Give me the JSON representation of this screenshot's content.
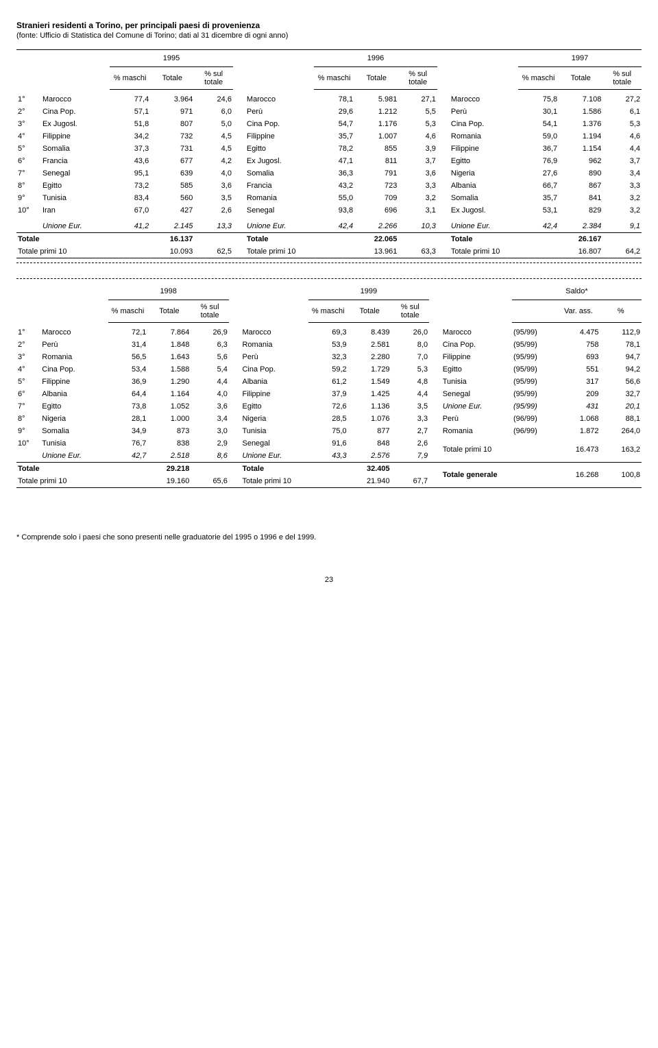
{
  "title": "Stranieri residenti a Torino, per principali paesi di provenienza",
  "subtitle": "(fonte: Ufficio di Statistica del Comune di Torino; dati al 31 dicembre di ogni anno)",
  "cols": {
    "pct_maschi": "% maschi",
    "totale": "Totale",
    "pct_sul_totale": "% sul totale",
    "var_ass": "Var. ass.",
    "pct": "%"
  },
  "years": {
    "y1995": "1995",
    "y1996": "1996",
    "y1997": "1997",
    "y1998": "1998",
    "y1999": "1999",
    "saldo": "Saldo*"
  },
  "topRows": [
    {
      "r": "1°",
      "a": "Marocco",
      "am": "77,4",
      "at": "3.964",
      "as": "24,6",
      "b": "Marocco",
      "bm": "78,1",
      "bt": "5.981",
      "bs": "27,1",
      "c": "Marocco",
      "cm": "75,8",
      "ct": "7.108",
      "cs": "27,2"
    },
    {
      "r": "2°",
      "a": "Cina Pop.",
      "am": "57,1",
      "at": "971",
      "as": "6,0",
      "b": "Perù",
      "bm": "29,6",
      "bt": "1.212",
      "bs": "5,5",
      "c": "Perù",
      "cm": "30,1",
      "ct": "1.586",
      "cs": "6,1"
    },
    {
      "r": "3°",
      "a": "Ex Jugosl.",
      "am": "51,8",
      "at": "807",
      "as": "5,0",
      "b": "Cina Pop.",
      "bm": "54,7",
      "bt": "1.176",
      "bs": "5,3",
      "c": "Cina Pop.",
      "cm": "54,1",
      "ct": "1.376",
      "cs": "5,3"
    },
    {
      "r": "4°",
      "a": "Filippine",
      "am": "34,2",
      "at": "732",
      "as": "4,5",
      "b": "Filippine",
      "bm": "35,7",
      "bt": "1.007",
      "bs": "4,6",
      "c": "Romania",
      "cm": "59,0",
      "ct": "1.194",
      "cs": "4,6"
    },
    {
      "r": "5°",
      "a": "Somalia",
      "am": "37,3",
      "at": "731",
      "as": "4,5",
      "b": "Egitto",
      "bm": "78,2",
      "bt": "855",
      "bs": "3,9",
      "c": "Filippine",
      "cm": "36,7",
      "ct": "1.154",
      "cs": "4,4"
    },
    {
      "r": "6°",
      "a": "Francia",
      "am": "43,6",
      "at": "677",
      "as": "4,2",
      "b": "Ex Jugosl.",
      "bm": "47,1",
      "bt": "811",
      "bs": "3,7",
      "c": "Egitto",
      "cm": "76,9",
      "ct": "962",
      "cs": "3,7"
    },
    {
      "r": "7°",
      "a": "Senegal",
      "am": "95,1",
      "at": "639",
      "as": "4,0",
      "b": "Somalia",
      "bm": "36,3",
      "bt": "791",
      "bs": "3,6",
      "c": "Nigeria",
      "cm": "27,6",
      "ct": "890",
      "cs": "3,4"
    },
    {
      "r": "8°",
      "a": "Egitto",
      "am": "73,2",
      "at": "585",
      "as": "3,6",
      "b": "Francia",
      "bm": "43,2",
      "bt": "723",
      "bs": "3,3",
      "c": "Albania",
      "cm": "66,7",
      "ct": "867",
      "cs": "3,3"
    },
    {
      "r": "9°",
      "a": "Tunisia",
      "am": "83,4",
      "at": "560",
      "as": "3,5",
      "b": "Romania",
      "bm": "55,0",
      "bt": "709",
      "bs": "3,2",
      "c": "Somalia",
      "cm": "35,7",
      "ct": "841",
      "cs": "3,2"
    },
    {
      "r": "10°",
      "a": "Iran",
      "am": "67,0",
      "at": "427",
      "as": "2,6",
      "b": "Senegal",
      "bm": "93,8",
      "bt": "696",
      "bs": "3,1",
      "c": "Ex Jugosl.",
      "cm": "53,1",
      "ct": "829",
      "cs": "3,2"
    }
  ],
  "topUnion": {
    "label": "Unione Eur.",
    "am": "41,2",
    "at": "2.145",
    "as": "13,3",
    "bm": "42,4",
    "bt": "2.266",
    "bs": "10,3",
    "cm": "42,4",
    "ct": "2.384",
    "cs": "9,1"
  },
  "topTotals": {
    "label": "Totale",
    "a": "16.137",
    "b": "22.065",
    "c": "26.167"
  },
  "topPrimi": {
    "label": "Totale primi 10",
    "a": "10.093",
    "ap": "62,5",
    "b": "13.961",
    "bp": "63,3",
    "c": "16.807",
    "cp": "64,2"
  },
  "botRows": [
    {
      "r": "1°",
      "a": "Marocco",
      "am": "72,1",
      "at": "7.864",
      "as": "26,9",
      "b": "Marocco",
      "bm": "69,3",
      "bt": "8.439",
      "bs": "26,0",
      "c": "Marocco",
      "cy": "(95/99)",
      "cv": "4.475",
      "cp": "112,9"
    },
    {
      "r": "2°",
      "a": "Perù",
      "am": "31,4",
      "at": "1.848",
      "as": "6,3",
      "b": "Romania",
      "bm": "53,9",
      "bt": "2.581",
      "bs": "8,0",
      "c": "Cina Pop.",
      "cy": "(95/99)",
      "cv": "758",
      "cp": "78,1"
    },
    {
      "r": "3°",
      "a": "Romania",
      "am": "56,5",
      "at": "1.643",
      "as": "5,6",
      "b": "Perù",
      "bm": "32,3",
      "bt": "2.280",
      "bs": "7,0",
      "c": "Filippine",
      "cy": "(95/99)",
      "cv": "693",
      "cp": "94,7"
    },
    {
      "r": "4°",
      "a": "Cina Pop.",
      "am": "53,4",
      "at": "1.588",
      "as": "5,4",
      "b": "Cina Pop.",
      "bm": "59,2",
      "bt": "1.729",
      "bs": "5,3",
      "c": "Egitto",
      "cy": "(95/99)",
      "cv": "551",
      "cp": "94,2"
    },
    {
      "r": "5°",
      "a": "Filippine",
      "am": "36,9",
      "at": "1.290",
      "as": "4,4",
      "b": "Albania",
      "bm": "61,2",
      "bt": "1.549",
      "bs": "4,8",
      "c": "Tunisia",
      "cy": "(95/99)",
      "cv": "317",
      "cp": "56,6"
    },
    {
      "r": "6°",
      "a": "Albania",
      "am": "64,4",
      "at": "1.164",
      "as": "4,0",
      "b": "Filippine",
      "bm": "37,9",
      "bt": "1.425",
      "bs": "4,4",
      "c": "Senegal",
      "cy": "(95/99)",
      "cv": "209",
      "cp": "32,7"
    },
    {
      "r": "7°",
      "a": "Egitto",
      "am": "73,8",
      "at": "1.052",
      "as": "3,6",
      "b": "Egitto",
      "bm": "72,6",
      "bt": "1.136",
      "bs": "3,5",
      "c": "Unione Eur.",
      "cy": "(95/99)",
      "cv": "431",
      "cp": "20,1",
      "ital": true
    },
    {
      "r": "8°",
      "a": "Nigeria",
      "am": "28,1",
      "at": "1.000",
      "as": "3,4",
      "b": "Nigeria",
      "bm": "28,5",
      "bt": "1.076",
      "bs": "3,3",
      "c": "Perù",
      "cy": "(96/99)",
      "cv": "1.068",
      "cp": "88,1"
    },
    {
      "r": "9°",
      "a": "Somalia",
      "am": "34,9",
      "at": "873",
      "as": "3,0",
      "b": "Tunisia",
      "bm": "75,0",
      "bt": "877",
      "bs": "2,7",
      "c": "Romania",
      "cy": "(96/99)",
      "cv": "1.872",
      "cp": "264,0"
    },
    {
      "r": "10°",
      "a": "Tunisia",
      "am": "76,7",
      "at": "838",
      "as": "2,9",
      "b": "Senegal",
      "bm": "91,6",
      "bt": "848",
      "bs": "2,6"
    }
  ],
  "botUnion": {
    "label": "Unione Eur.",
    "am": "42,7",
    "at": "2.518",
    "as": "8,6",
    "bm": "43,3",
    "bt": "2.576",
    "bs": "7,9"
  },
  "botSaldoPrimi": {
    "label": "Totale primi 10",
    "v": "16.473",
    "p": "163,2"
  },
  "botTotals": {
    "label": "Totale",
    "a": "29.218",
    "b": "32.405"
  },
  "botPrimi": {
    "label": "Totale primi 10",
    "a": "19.160",
    "ap": "65,6",
    "b": "21.940",
    "bp": "67,7"
  },
  "botSaldoGen": {
    "label": "Totale generale",
    "v": "16.268",
    "p": "100,8"
  },
  "footnote": "* Comprende solo i paesi che sono presenti nelle graduatorie del 1995 o 1996 e del 1999.",
  "pagenum": "23"
}
